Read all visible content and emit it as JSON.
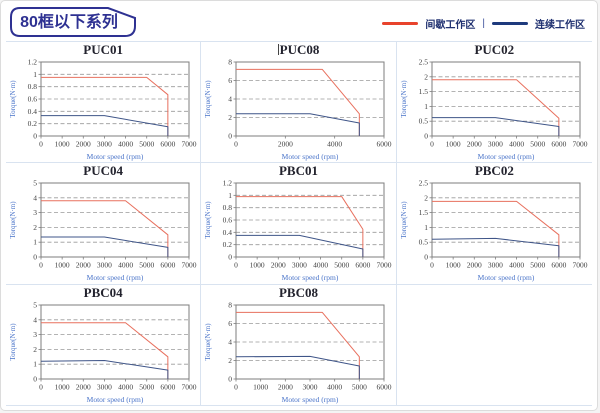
{
  "header": {
    "title": "80框以下系列",
    "legend": {
      "separator": "|",
      "items": [
        {
          "label": "间歇工作区",
          "color": "#e8432c"
        },
        {
          "label": "连续工作区",
          "color": "#1e3a7d"
        }
      ]
    }
  },
  "colors": {
    "intermittent": "#e8705e",
    "continuous": "#3f5588",
    "grid_line": "#9a9a9a",
    "frame": "#7d7d7d",
    "tick_text": "#3f3f3f",
    "axis_label_text": "#4a74c9",
    "badge": "#2e3192",
    "cell_border": "#d9e3f0"
  },
  "chart_data": [
    {
      "type": "line",
      "title": "PUC01",
      "title_cursor": false,
      "xlabel": "Motor speed (rpm)",
      "ylabel": "Torque(N·m)",
      "xlim": [
        0,
        7000
      ],
      "xticks": [
        0,
        1000,
        2000,
        3000,
        4000,
        5000,
        6000,
        7000
      ],
      "ylim": [
        0,
        1.2
      ],
      "yticks": [
        0,
        0.2,
        0.4,
        0.6,
        0.8,
        1,
        1.2
      ],
      "grid": "dashed-horizontal",
      "legend_position": "none",
      "series": [
        {
          "name": "间歇工作区",
          "role": "intermittent",
          "points": [
            [
              0,
              0.95
            ],
            [
              5000,
              0.95
            ],
            [
              6000,
              0.67
            ],
            [
              6000,
              0
            ]
          ]
        },
        {
          "name": "连续工作区",
          "role": "continuous",
          "points": [
            [
              0,
              0.33
            ],
            [
              3000,
              0.33
            ],
            [
              6000,
              0.15
            ],
            [
              6000,
              0
            ]
          ]
        }
      ]
    },
    {
      "type": "line",
      "title": "PUC08",
      "title_cursor": true,
      "xlabel": "Motor speed (rpm)",
      "ylabel": "Torque(N·m)",
      "xlim": [
        0,
        6000
      ],
      "xticks": [
        0,
        2000,
        4000,
        6000
      ],
      "ylim": [
        0,
        8
      ],
      "yticks": [
        0,
        2,
        4,
        6,
        8
      ],
      "grid": "dashed-horizontal",
      "legend_position": "none",
      "series": [
        {
          "name": "间歇工作区",
          "role": "intermittent",
          "points": [
            [
              0,
              7.2
            ],
            [
              3500,
              7.2
            ],
            [
              5000,
              2.4
            ],
            [
              5000,
              0
            ]
          ]
        },
        {
          "name": "连续工作区",
          "role": "continuous",
          "points": [
            [
              0,
              2.4
            ],
            [
              3000,
              2.4
            ],
            [
              5000,
              1.4
            ],
            [
              5000,
              0
            ]
          ]
        }
      ]
    },
    {
      "type": "line",
      "title": "PUC02",
      "title_cursor": false,
      "xlabel": "Motor speed (rpm)",
      "ylabel": "Torque(N·m)",
      "xlim": [
        0,
        7000
      ],
      "xticks": [
        0,
        1000,
        2000,
        3000,
        4000,
        5000,
        6000,
        7000
      ],
      "ylim": [
        0,
        2.5
      ],
      "yticks": [
        0,
        0.5,
        1,
        1.5,
        2,
        2.5
      ],
      "grid": "dashed-horizontal",
      "legend_position": "none",
      "series": [
        {
          "name": "间歇工作区",
          "role": "intermittent",
          "points": [
            [
              0,
              1.9
            ],
            [
              4000,
              1.9
            ],
            [
              6000,
              0.6
            ],
            [
              6000,
              0
            ]
          ]
        },
        {
          "name": "连续工作区",
          "role": "continuous",
          "points": [
            [
              0,
              0.62
            ],
            [
              3000,
              0.62
            ],
            [
              6000,
              0.32
            ],
            [
              6000,
              0
            ]
          ]
        }
      ]
    },
    {
      "type": "line",
      "title": "PUC04",
      "title_cursor": false,
      "xlabel": "Motor speed (rpm)",
      "ylabel": "Torque(N·m)",
      "xlim": [
        0,
        7000
      ],
      "xticks": [
        0,
        1000,
        2000,
        3000,
        4000,
        5000,
        6000,
        7000
      ],
      "ylim": [
        0,
        5
      ],
      "yticks": [
        0,
        1,
        2,
        3,
        4,
        5
      ],
      "grid": "dashed-horizontal",
      "legend_position": "none",
      "series": [
        {
          "name": "间歇工作区",
          "role": "intermittent",
          "points": [
            [
              0,
              3.8
            ],
            [
              4000,
              3.8
            ],
            [
              6000,
              1.5
            ],
            [
              6000,
              0
            ]
          ]
        },
        {
          "name": "连续工作区",
          "role": "continuous",
          "points": [
            [
              0,
              1.35
            ],
            [
              3000,
              1.35
            ],
            [
              6000,
              0.65
            ],
            [
              6000,
              0
            ]
          ]
        }
      ]
    },
    {
      "type": "line",
      "title": "PBC01",
      "title_cursor": false,
      "xlabel": "Motor speed (rpm)",
      "ylabel": "Torque(N·m)",
      "xlim": [
        0,
        7000
      ],
      "xticks": [
        0,
        1000,
        2000,
        3000,
        4000,
        5000,
        6000,
        7000
      ],
      "ylim": [
        0,
        1.2
      ],
      "yticks": [
        0,
        0.2,
        0.4,
        0.6,
        0.8,
        1,
        1.2
      ],
      "grid": "dashed-horizontal",
      "legend_position": "none",
      "series": [
        {
          "name": "间歇工作区",
          "role": "intermittent",
          "points": [
            [
              0,
              0.98
            ],
            [
              5000,
              0.98
            ],
            [
              6000,
              0.45
            ],
            [
              6000,
              0
            ]
          ]
        },
        {
          "name": "连续工作区",
          "role": "continuous",
          "points": [
            [
              0,
              0.35
            ],
            [
              3000,
              0.35
            ],
            [
              6000,
              0.13
            ],
            [
              6000,
              0
            ]
          ]
        }
      ]
    },
    {
      "type": "line",
      "title": "PBC02",
      "title_cursor": false,
      "xlabel": "Motor speed (rpm)",
      "ylabel": "Torque(N·m)",
      "xlim": [
        0,
        7000
      ],
      "xticks": [
        0,
        1000,
        2000,
        3000,
        4000,
        5000,
        6000,
        7000
      ],
      "ylim": [
        0,
        2.5
      ],
      "yticks": [
        0,
        0.5,
        1,
        1.5,
        2,
        2.5
      ],
      "grid": "dashed-horizontal",
      "legend_position": "none",
      "series": [
        {
          "name": "间歇工作区",
          "role": "intermittent",
          "points": [
            [
              0,
              1.88
            ],
            [
              4000,
              1.88
            ],
            [
              6000,
              0.75
            ],
            [
              6000,
              0
            ]
          ]
        },
        {
          "name": "连续工作区",
          "role": "continuous",
          "points": [
            [
              0,
              0.6
            ],
            [
              3000,
              0.63
            ],
            [
              6000,
              0.38
            ],
            [
              6000,
              0
            ]
          ]
        }
      ]
    },
    {
      "type": "line",
      "title": "PBC04",
      "title_cursor": false,
      "xlabel": "Motor speed (rpm)",
      "ylabel": "Torque(N·m)",
      "xlim": [
        0,
        7000
      ],
      "xticks": [
        0,
        1000,
        2000,
        3000,
        4000,
        5000,
        6000,
        7000
      ],
      "ylim": [
        0,
        5
      ],
      "yticks": [
        0,
        1,
        2,
        3,
        4,
        5
      ],
      "grid": "dashed-horizontal",
      "legend_position": "none",
      "series": [
        {
          "name": "间歇工作区",
          "role": "intermittent",
          "points": [
            [
              0,
              3.8
            ],
            [
              4000,
              3.8
            ],
            [
              6000,
              1.5
            ],
            [
              6000,
              0
            ]
          ]
        },
        {
          "name": "连续工作区",
          "role": "continuous",
          "points": [
            [
              0,
              1.2
            ],
            [
              3000,
              1.25
            ],
            [
              6000,
              0.6
            ],
            [
              6000,
              0
            ]
          ]
        }
      ]
    },
    {
      "type": "line",
      "title": "PBC08",
      "title_cursor": false,
      "xlabel": "Motor speed (rpm)",
      "ylabel": "Torque(N·m)",
      "xlim": [
        0,
        6000
      ],
      "xticks": [
        0,
        1000,
        2000,
        3000,
        4000,
        5000,
        6000
      ],
      "ylim": [
        0,
        8
      ],
      "yticks": [
        0,
        2,
        4,
        6,
        8
      ],
      "grid": "dashed-horizontal",
      "legend_position": "none",
      "series": [
        {
          "name": "间歇工作区",
          "role": "intermittent",
          "points": [
            [
              0,
              7.2
            ],
            [
              3500,
              7.2
            ],
            [
              5000,
              2.4
            ],
            [
              5000,
              0
            ]
          ]
        },
        {
          "name": "连续工作区",
          "role": "continuous",
          "points": [
            [
              0,
              2.4
            ],
            [
              3000,
              2.45
            ],
            [
              5000,
              1.4
            ],
            [
              5000,
              0
            ]
          ]
        }
      ]
    }
  ]
}
